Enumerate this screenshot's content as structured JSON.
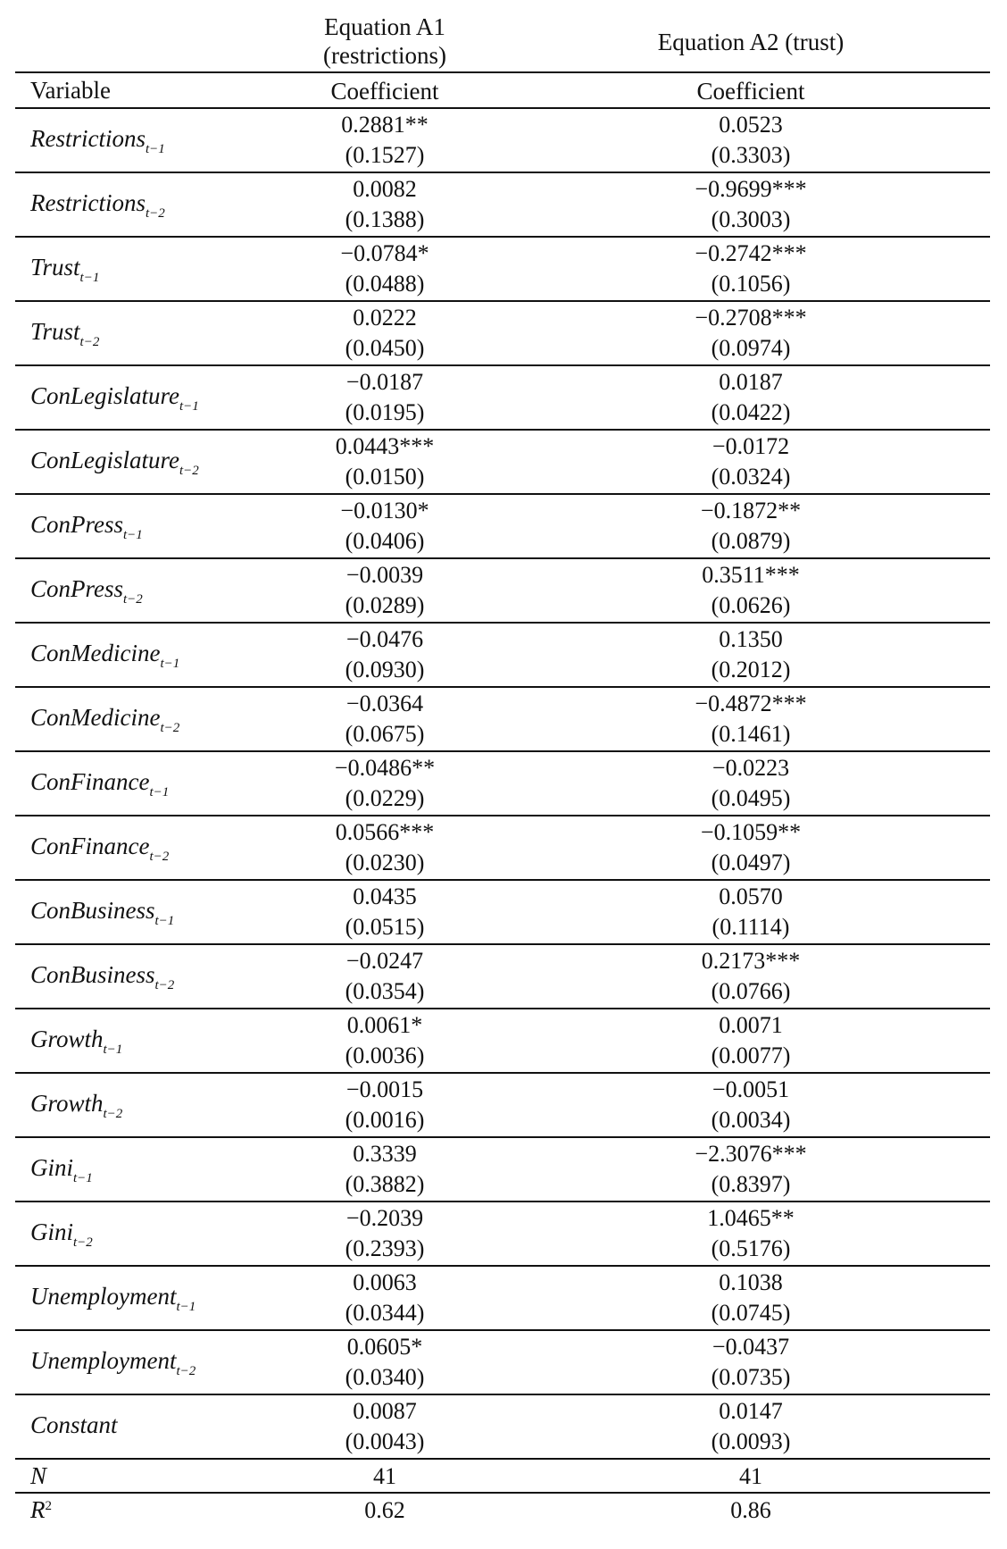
{
  "header": {
    "col1_title": "Equation A1 (restrictions)",
    "col2_title": "Equation A2 (trust)",
    "variable_label": "Variable",
    "col1_sub": "Coefficient",
    "col2_sub": "Coefficient"
  },
  "rows": [
    {
      "var": "Restrictions",
      "sub": "t−1",
      "a1": "0.2881**",
      "a1_se": "(0.1527)",
      "a2": "0.0523",
      "a2_se": "(0.3303)"
    },
    {
      "var": "Restrictions",
      "sub": "t−2",
      "a1": "0.0082",
      "a1_se": "(0.1388)",
      "a2": "−0.9699***",
      "a2_se": "(0.3003)"
    },
    {
      "var": "Trust",
      "sub": "t−1",
      "a1": "−0.0784*",
      "a1_se": "(0.0488)",
      "a2": "−0.2742***",
      "a2_se": "(0.1056)"
    },
    {
      "var": "Trust",
      "sub": "t−2",
      "a1": "0.0222",
      "a1_se": "(0.0450)",
      "a2": "−0.2708***",
      "a2_se": "(0.0974)"
    },
    {
      "var": "ConLegislature",
      "sub": "t−1",
      "a1": "−0.0187",
      "a1_se": "(0.0195)",
      "a2": "0.0187",
      "a2_se": "(0.0422)"
    },
    {
      "var": "ConLegislature",
      "sub": "t−2",
      "a1": "0.0443***",
      "a1_se": "(0.0150)",
      "a2": "−0.0172",
      "a2_se": "(0.0324)"
    },
    {
      "var": "ConPress",
      "sub": "t−1",
      "a1": "−0.0130*",
      "a1_se": "(0.0406)",
      "a2": "−0.1872**",
      "a2_se": "(0.0879)"
    },
    {
      "var": "ConPress",
      "sub": "t−2",
      "a1": "−0.0039",
      "a1_se": "(0.0289)",
      "a2": "0.3511***",
      "a2_se": "(0.0626)"
    },
    {
      "var": "ConMedicine",
      "sub": "t−1",
      "a1": "−0.0476",
      "a1_se": "(0.0930)",
      "a2": "0.1350",
      "a2_se": "(0.2012)"
    },
    {
      "var": "ConMedicine",
      "sub": "t−2",
      "a1": "−0.0364",
      "a1_se": "(0.0675)",
      "a2": "−0.4872***",
      "a2_se": "(0.1461)"
    },
    {
      "var": "ConFinance",
      "sub": "t−1",
      "a1": "−0.0486**",
      "a1_se": "(0.0229)",
      "a2": "−0.0223",
      "a2_se": "(0.0495)"
    },
    {
      "var": "ConFinance",
      "sub": "t−2",
      "a1": "0.0566***",
      "a1_se": "(0.0230)",
      "a2": "−0.1059**",
      "a2_se": "(0.0497)"
    },
    {
      "var": "ConBusiness",
      "sub": "t−1",
      "a1": "0.0435",
      "a1_se": "(0.0515)",
      "a2": "0.0570",
      "a2_se": "(0.1114)"
    },
    {
      "var": "ConBusiness",
      "sub": "t−2",
      "a1": "−0.0247",
      "a1_se": "(0.0354)",
      "a2": "0.2173***",
      "a2_se": "(0.0766)"
    },
    {
      "var": "Growth",
      "sub": "t−1",
      "a1": "0.0061*",
      "a1_se": "(0.0036)",
      "a2": "0.0071",
      "a2_se": "(0.0077)"
    },
    {
      "var": "Growth",
      "sub": "t−2",
      "a1": "−0.0015",
      "a1_se": "(0.0016)",
      "a2": "−0.0051",
      "a2_se": "(0.0034)"
    },
    {
      "var": "Gini",
      "sub": "t−1",
      "a1": "0.3339",
      "a1_se": "(0.3882)",
      "a2": "−2.3076***",
      "a2_se": "(0.8397)"
    },
    {
      "var": "Gini",
      "sub": "t−2",
      "a1": "−0.2039",
      "a1_se": "(0.2393)",
      "a2": "1.0465**",
      "a2_se": "(0.5176)"
    },
    {
      "var": "Unemployment",
      "sub": "t−1",
      "a1": "0.0063",
      "a1_se": "(0.0344)",
      "a2": "0.1038",
      "a2_se": "(0.0745)"
    },
    {
      "var": "Unemployment",
      "sub": "t−2",
      "a1": "0.0605*",
      "a1_se": "(0.0340)",
      "a2": "−0.0437",
      "a2_se": "(0.0735)"
    },
    {
      "var": "Constant",
      "sub": "",
      "a1": "0.0087",
      "a1_se": "(0.0043)",
      "a2": "0.0147",
      "a2_se": "(0.0093)"
    }
  ],
  "stats": [
    {
      "var": "N",
      "sup": "",
      "a1": "41",
      "a2": "41"
    },
    {
      "var": "R",
      "sup": "2",
      "a1": "0.62",
      "a2": "0.86"
    }
  ]
}
